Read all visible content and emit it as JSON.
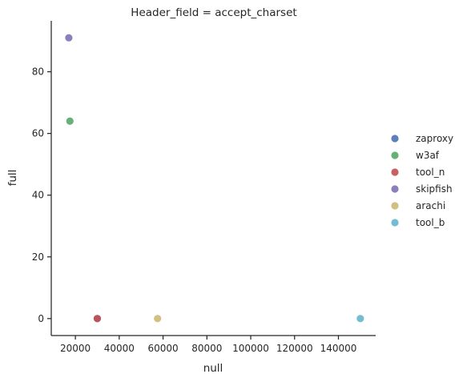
{
  "chart_data": {
    "type": "scatter",
    "title": "Header_field = accept_charset",
    "xlabel": "null",
    "ylabel": "full",
    "xlim": [
      9000,
      157000
    ],
    "ylim": [
      -5.5,
      96.5
    ],
    "xticks": [
      20000,
      40000,
      60000,
      80000,
      100000,
      120000,
      140000
    ],
    "xtick_labels": [
      "20000",
      "40000",
      "60000",
      "80000",
      "100000",
      "120000",
      "140000"
    ],
    "yticks": [
      0,
      20,
      40,
      60,
      80
    ],
    "ytick_labels": [
      "0",
      "20",
      "40",
      "60",
      "80"
    ],
    "grid": false,
    "legend_position": "right",
    "series": [
      {
        "name": "zaproxy",
        "color": "#4c72b0",
        "points": [
          [
            30000,
            0
          ]
        ]
      },
      {
        "name": "w3af",
        "color": "#55a868",
        "points": [
          [
            17500,
            64
          ]
        ]
      },
      {
        "name": "tool_n",
        "color": "#c44e52",
        "points": [
          [
            30000,
            0
          ]
        ]
      },
      {
        "name": "skipfish",
        "color": "#8172b2",
        "points": [
          [
            17000,
            91
          ]
        ]
      },
      {
        "name": "arachi",
        "color": "#ccb974",
        "points": [
          [
            57500,
            0
          ]
        ]
      },
      {
        "name": "tool_b",
        "color": "#64b5cd",
        "points": [
          [
            150000,
            0
          ]
        ]
      }
    ]
  }
}
